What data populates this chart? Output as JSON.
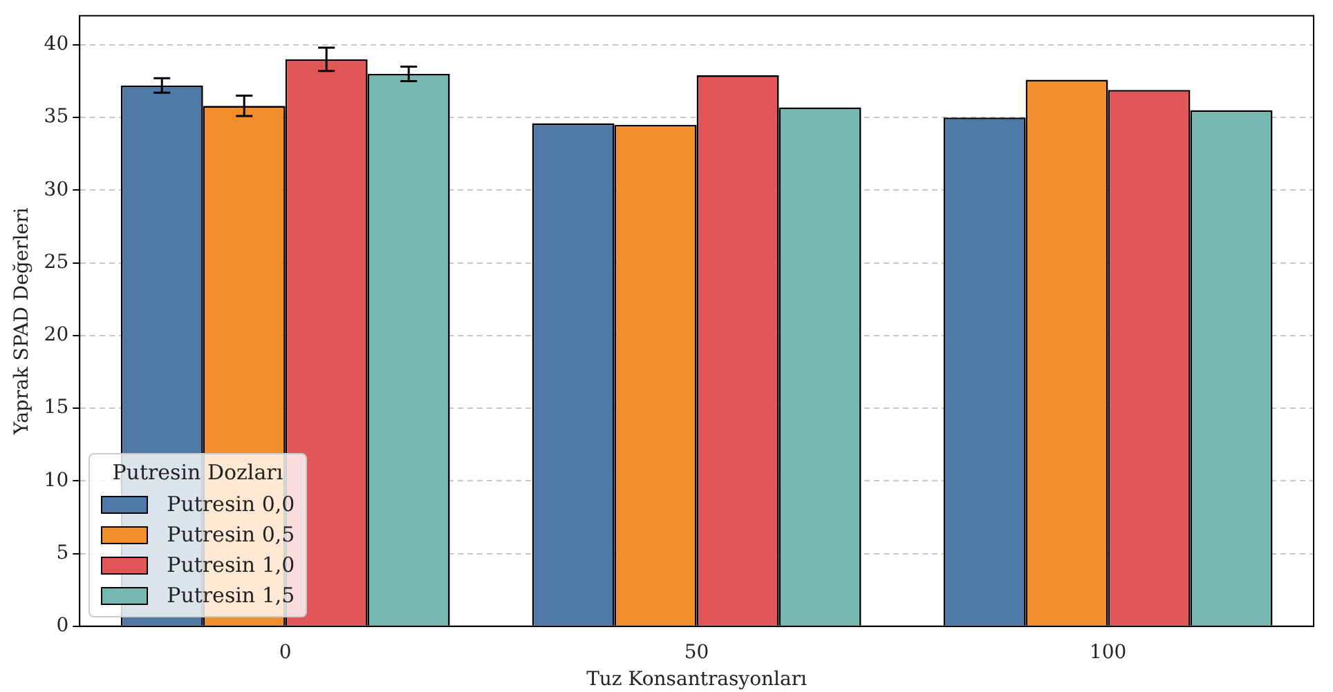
{
  "chart_data": {
    "type": "bar",
    "xlabel": "Tuz Konsantrasyonları",
    "ylabel": "Yaprak SPAD Değerleri",
    "legend_title": "Putresin Dozları",
    "categories": [
      "0",
      "50",
      "100"
    ],
    "series": [
      {
        "name": "Putresin 0,0",
        "color": "#4e79a7",
        "values": [
          37.2,
          34.6,
          35.0
        ],
        "errors": [
          0.5,
          null,
          null
        ]
      },
      {
        "name": "Putresin 0,5",
        "color": "#f28e2b",
        "values": [
          35.8,
          34.5,
          37.6
        ],
        "errors": [
          0.7,
          null,
          null
        ]
      },
      {
        "name": "Putresin 1,0",
        "color": "#e15759",
        "values": [
          39.0,
          37.9,
          36.9
        ],
        "errors": [
          0.8,
          null,
          null
        ]
      },
      {
        "name": "Putresin 1,5",
        "color": "#76b7b2",
        "values": [
          38.0,
          35.7,
          35.5
        ],
        "errors": [
          0.5,
          null,
          null
        ]
      }
    ],
    "ylim": [
      0,
      42
    ],
    "yticks": [
      0,
      5,
      10,
      15,
      20,
      25,
      30,
      35,
      40
    ],
    "grid": "y",
    "legend": "bottom left"
  }
}
